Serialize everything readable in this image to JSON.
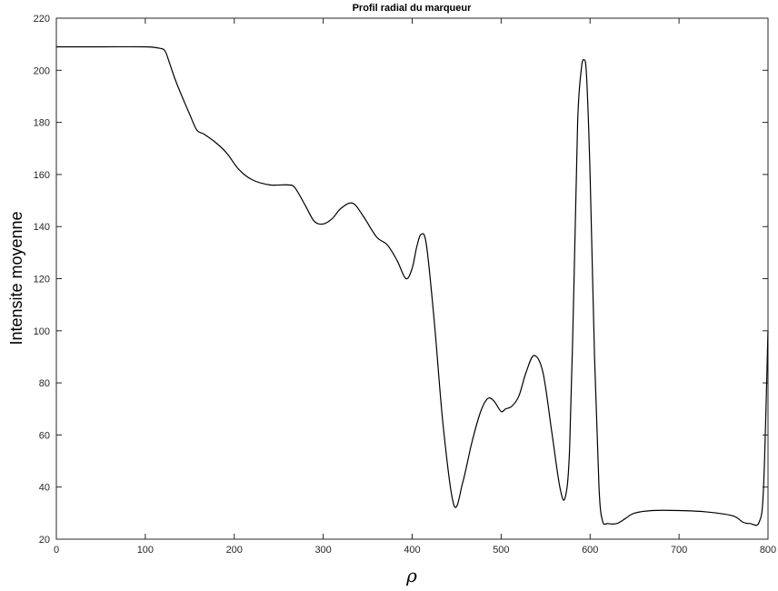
{
  "chart_data": {
    "type": "line",
    "title": "Profil radial du marqueur",
    "xlabel": "ρ",
    "ylabel": "Intensite moyenne",
    "xlim": [
      0,
      800
    ],
    "ylim": [
      20,
      220
    ],
    "xticks": [
      0,
      100,
      200,
      300,
      400,
      500,
      600,
      700,
      800
    ],
    "yticks": [
      20,
      40,
      60,
      80,
      100,
      120,
      140,
      160,
      180,
      200,
      220
    ],
    "grid": false,
    "legend": "none",
    "series": [
      {
        "color": "#000000",
        "x": [
          0,
          50,
          100,
          115,
          122,
          127,
          133,
          140,
          150,
          158,
          166,
          180,
          192,
          205,
          220,
          240,
          260,
          268,
          280,
          290,
          300,
          310,
          320,
          333,
          345,
          360,
          372,
          383,
          393,
          400,
          405,
          410,
          416,
          425,
          435,
          447,
          457,
          467,
          477,
          485,
          492,
          500,
          505,
          512,
          520,
          528,
          537,
          547,
          557,
          566,
          572,
          577,
          582,
          586,
          590,
          593,
          596,
          600,
          605,
          610,
          614,
          620,
          630,
          640,
          650,
          670,
          700,
          730,
          760,
          772,
          780,
          790,
          795,
          800
        ],
        "y": [
          209,
          209,
          209,
          208.5,
          207.5,
          203,
          197,
          191,
          183,
          177,
          175.5,
          172,
          168,
          162,
          158,
          156,
          156,
          155,
          148,
          142,
          141,
          143,
          147,
          149,
          144,
          136,
          133,
          127,
          120,
          124,
          132,
          137,
          133,
          103,
          63,
          33,
          42,
          57,
          69,
          74,
          73,
          69,
          70,
          71,
          75,
          84,
          90.5,
          84,
          61,
          40,
          36,
          55,
          120,
          180,
          200,
          204,
          198,
          160,
          90,
          40,
          27,
          26,
          26,
          28,
          30,
          31,
          31,
          30.5,
          29,
          26.5,
          26,
          26.5,
          40,
          100
        ]
      }
    ]
  }
}
